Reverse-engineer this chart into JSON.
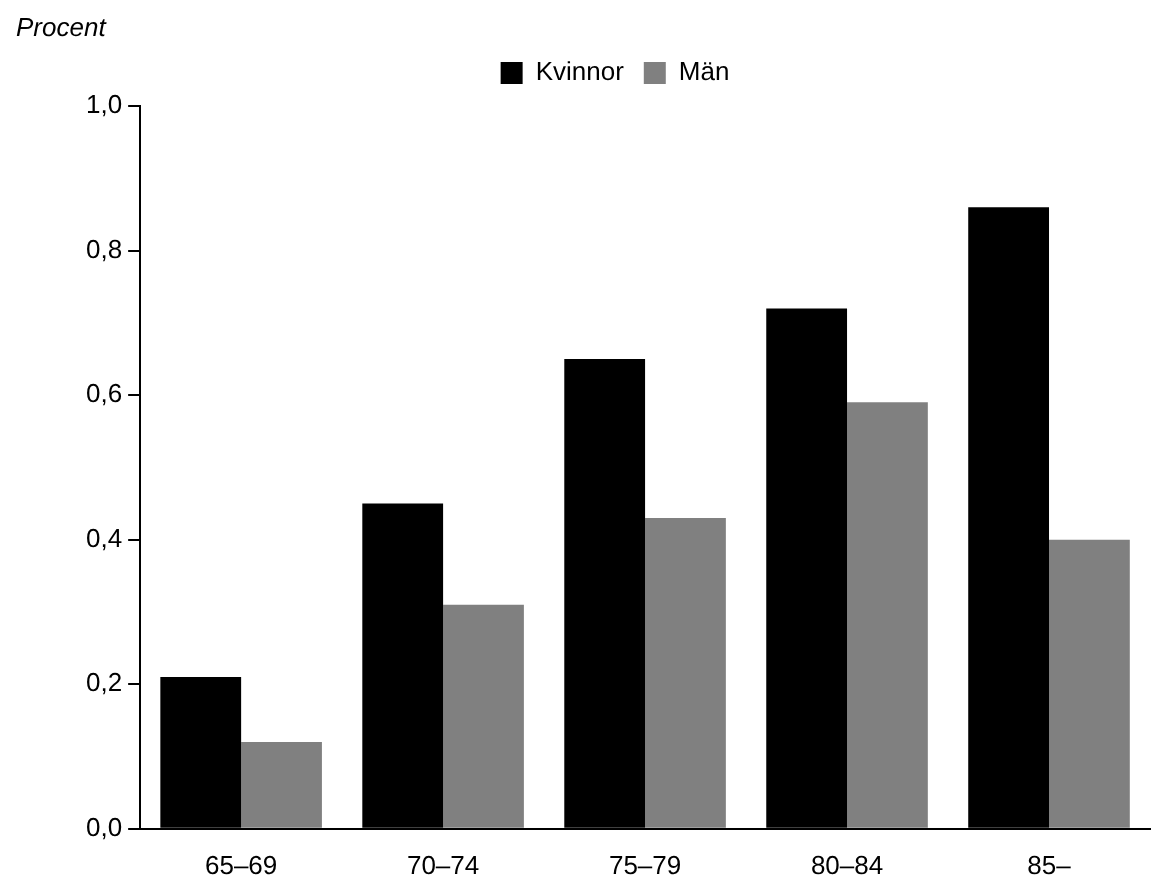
{
  "chart_data": {
    "type": "bar",
    "ylabel": "Procent",
    "categories": [
      "65–69",
      "70–74",
      "75–79",
      "80–84",
      "85–"
    ],
    "series": [
      {
        "name": "Kvinnor",
        "color": "#000000",
        "values": [
          0.21,
          0.45,
          0.65,
          0.72,
          0.86
        ]
      },
      {
        "name": "Män",
        "color": "#808080",
        "values": [
          0.12,
          0.31,
          0.43,
          0.59,
          0.4
        ]
      }
    ],
    "ylim": [
      0,
      1
    ],
    "yticks": [
      {
        "value": 0,
        "label": "0,0"
      },
      {
        "value": 0.2,
        "label": "0,2"
      },
      {
        "value": 0.4,
        "label": "0,4"
      },
      {
        "value": 0.6,
        "label": "0,6"
      },
      {
        "value": 0.8,
        "label": "0,8"
      },
      {
        "value": 1,
        "label": "1,0"
      }
    ],
    "grid": false,
    "legend": "top"
  }
}
